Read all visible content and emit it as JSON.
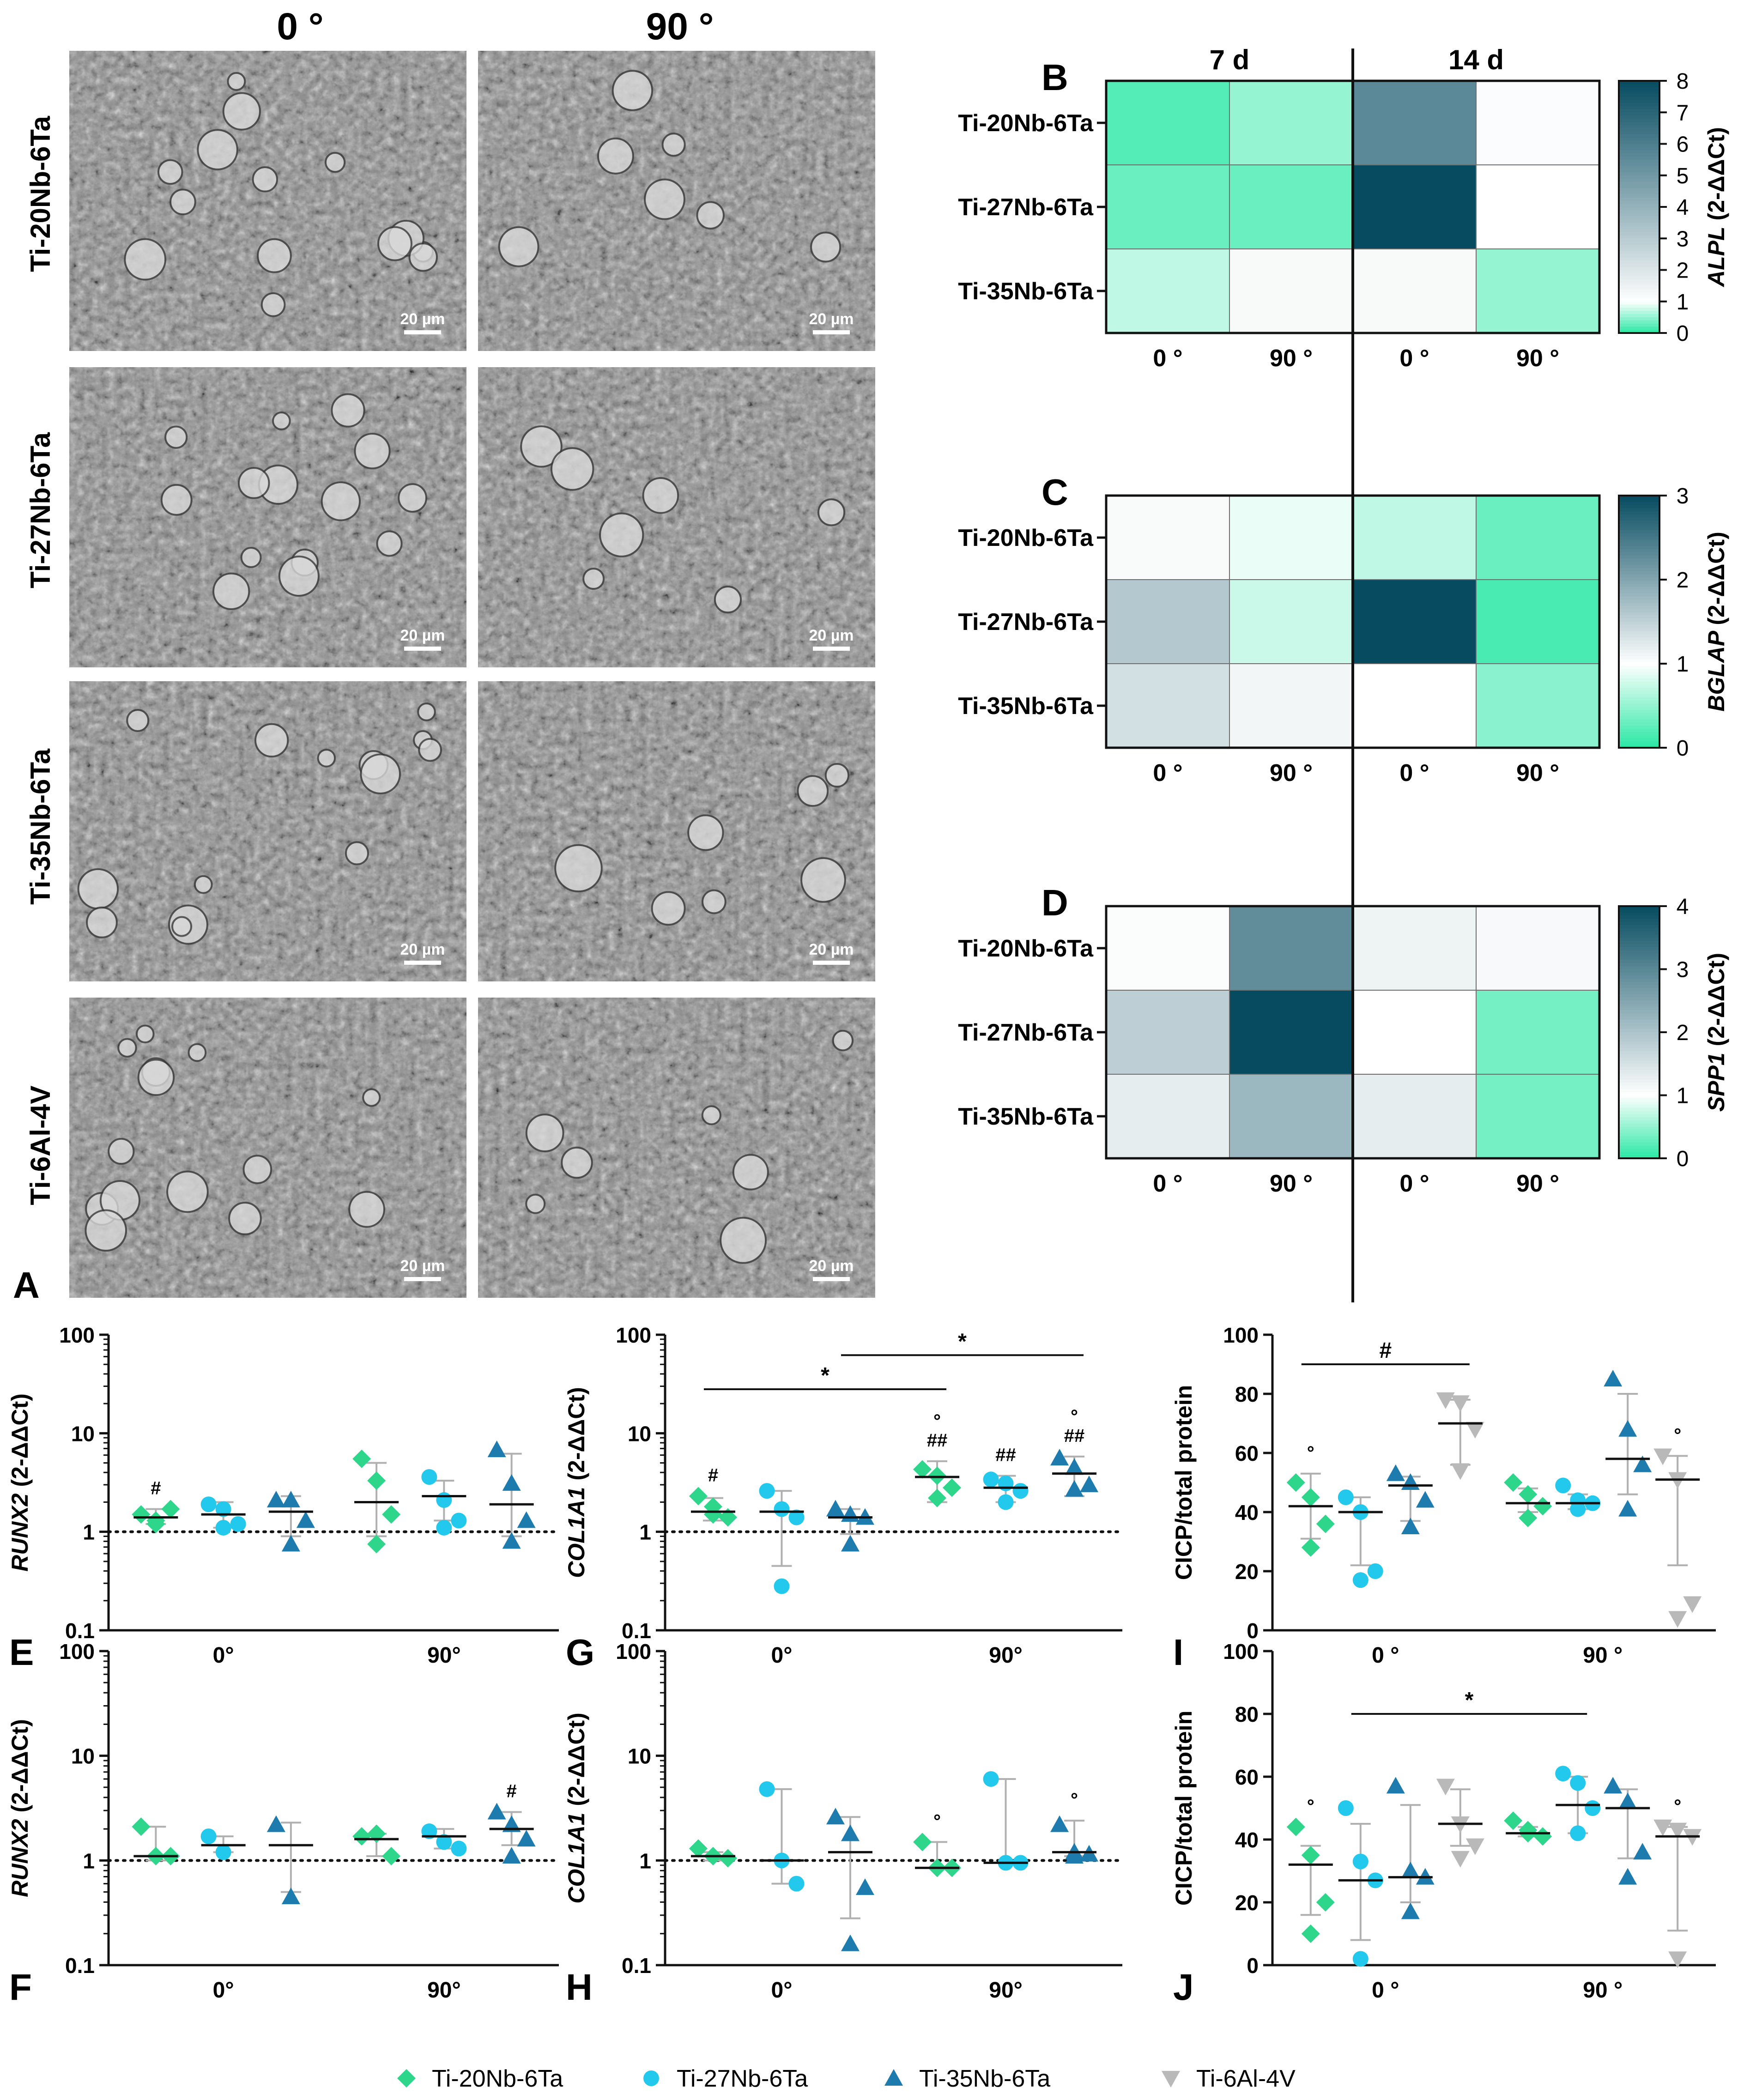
{
  "figure": {
    "col_labels": [
      "0 °",
      "90 °"
    ],
    "legend": {
      "items": [
        {
          "name": "Ti-20Nb-6Ta",
          "color": "#2ed68c",
          "marker": "diamond"
        },
        {
          "name": "Ti-27Nb-6Ta",
          "color": "#22c9ec",
          "marker": "circle"
        },
        {
          "name": "Ti-35Nb-6Ta",
          "color": "#1d7cad",
          "marker": "triangle-up"
        },
        {
          "name": "Ti-6Al-4V",
          "color": "#b9b9b9",
          "marker": "triangle-down"
        }
      ]
    }
  },
  "sem_panel": {
    "letter": "A",
    "alloys": [
      "Ti-20Nb-6Ta",
      "Ti-27Nb-6Ta",
      "Ti-35Nb-6Ta",
      "Ti-6Al-4V"
    ],
    "scale_bar": "20 µm"
  },
  "chart_data": [
    {
      "panel": "B",
      "type": "heatmap",
      "title": "",
      "gene": "ALPL",
      "unit": "(2-ΔΔCt)",
      "top_labels": [
        "7 d",
        "14 d"
      ],
      "rows": [
        "Ti-20Nb-6Ta",
        "Ti-27Nb-6Ta",
        "Ti-35Nb-6Ta"
      ],
      "columns": [
        "0 °",
        "90 °",
        "0 °",
        "90 °"
      ],
      "values": [
        [
          0.2,
          0.5,
          5.6,
          1.1
        ],
        [
          0.3,
          0.3,
          8.0,
          1.0
        ],
        [
          0.7,
          1.2,
          1.2,
          0.5
        ]
      ],
      "colorbar": {
        "min": 0,
        "max": 8,
        "ticks": [
          0,
          1,
          2,
          3,
          4,
          5,
          6,
          7,
          8
        ]
      }
    },
    {
      "panel": "C",
      "type": "heatmap",
      "title": "",
      "gene": "BGLAP",
      "unit": "(2-ΔΔCt)",
      "rows": [
        "Ti-20Nb-6Ta",
        "Ti-27Nb-6Ta",
        "Ti-35Nb-6Ta"
      ],
      "columns": [
        "0 °",
        "90 °",
        "0 °",
        "90 °"
      ],
      "values": [
        [
          1.05,
          0.9,
          0.7,
          0.3
        ],
        [
          1.6,
          0.75,
          3.0,
          0.15
        ],
        [
          1.35,
          1.1,
          1.0,
          0.45
        ]
      ],
      "colorbar": {
        "min": 0,
        "max": 3,
        "ticks": [
          0,
          1,
          2,
          3
        ]
      }
    },
    {
      "panel": "D",
      "type": "heatmap",
      "title": "",
      "gene": "SPP1",
      "unit": "(2-ΔΔCt)",
      "rows": [
        "Ti-20Nb-6Ta",
        "Ti-27Nb-6Ta",
        "Ti-35Nb-6Ta"
      ],
      "columns": [
        "0 °",
        "90 °",
        "0 °",
        "90 °"
      ],
      "values": [
        [
          1.05,
          2.9,
          1.2,
          1.1
        ],
        [
          1.8,
          4.0,
          1.0,
          0.35
        ],
        [
          1.3,
          2.2,
          1.3,
          0.35
        ]
      ],
      "colorbar": {
        "min": 0,
        "max": 4,
        "ticks": [
          0,
          1,
          2,
          3,
          4
        ]
      }
    },
    {
      "panel": "E",
      "type": "scatter",
      "title": "",
      "ylabel_gene": "RUNX2",
      "ylabel_unit": "(2-ΔΔCt)",
      "yscale": "log",
      "ylim": [
        0.1,
        100
      ],
      "yticks": [
        "0.1",
        "1",
        "10",
        "100"
      ],
      "groups": [
        "0°",
        "90°"
      ],
      "series": [
        {
          "name": "Ti-20Nb-6Ta",
          "group": "0°",
          "points": [
            1.5,
            1.2,
            1.7,
            1.3
          ],
          "mean": 1.4,
          "err": [
            1.2,
            1.7
          ],
          "annot_above": "#"
        },
        {
          "name": "Ti-27Nb-6Ta",
          "group": "0°",
          "points": [
            1.9,
            1.1,
            1.2,
            1.7
          ],
          "mean": 1.5,
          "err": [
            1.1,
            2.0
          ]
        },
        {
          "name": "Ti-35Nb-6Ta",
          "group": "0°",
          "points": [
            2.1,
            0.75,
            1.3,
            2.1
          ],
          "mean": 1.6,
          "err": [
            0.9,
            2.3
          ]
        },
        {
          "name": "Ti-20Nb-6Ta",
          "group": "90°",
          "points": [
            5.5,
            3.3,
            1.5,
            0.75
          ],
          "mean": 2.0,
          "err": [
            0.9,
            5.0
          ]
        },
        {
          "name": "Ti-27Nb-6Ta",
          "group": "90°",
          "points": [
            3.6,
            2.1,
            1.3,
            1.1
          ],
          "mean": 2.3,
          "err": [
            1.3,
            3.3
          ]
        },
        {
          "name": "Ti-35Nb-6Ta",
          "group": "90°",
          "points": [
            6.8,
            3.1,
            1.3,
            0.8
          ],
          "mean": 1.9,
          "err": [
            0.9,
            6.2
          ]
        }
      ],
      "refline": 1,
      "brackets": []
    },
    {
      "panel": "F",
      "type": "scatter",
      "title": "",
      "ylabel_gene": "RUNX2",
      "ylabel_unit": "(2-ΔΔCt)",
      "yscale": "log",
      "ylim": [
        0.1,
        100
      ],
      "yticks": [
        "0.1",
        "1",
        "10",
        "100"
      ],
      "groups": [
        "0°",
        "90°"
      ],
      "series": [
        {
          "name": "Ti-20Nb-6Ta",
          "group": "0°",
          "points": [
            2.1,
            1.1,
            1.1
          ],
          "mean": 1.1,
          "err": [
            1.0,
            2.1
          ]
        },
        {
          "name": "Ti-27Nb-6Ta",
          "group": "0°",
          "points": [
            1.7,
            1.2
          ],
          "mean": 1.4,
          "err": [
            1.2,
            1.7
          ]
        },
        {
          "name": "Ti-35Nb-6Ta",
          "group": "0°",
          "points": [
            2.2,
            0.45
          ],
          "mean": 1.4,
          "err": [
            0.5,
            2.3
          ]
        },
        {
          "name": "Ti-20Nb-6Ta",
          "group": "90°",
          "points": [
            1.7,
            1.8,
            1.1
          ],
          "mean": 1.6,
          "err": [
            1.1,
            1.8
          ]
        },
        {
          "name": "Ti-27Nb-6Ta",
          "group": "90°",
          "points": [
            1.9,
            1.5,
            1.3
          ],
          "mean": 1.7,
          "err": [
            1.3,
            2.0
          ]
        },
        {
          "name": "Ti-35Nb-6Ta",
          "group": "90°",
          "points": [
            2.9,
            2.2,
            1.6,
            1.1
          ],
          "mean": 2.0,
          "err": [
            1.4,
            2.9
          ],
          "annot_above": "#"
        }
      ],
      "refline": 1,
      "brackets": []
    },
    {
      "panel": "G",
      "type": "scatter",
      "title": "",
      "ylabel_gene": "COL1A1",
      "ylabel_unit": "(2-ΔΔCt)",
      "yscale": "log",
      "ylim": [
        0.1,
        100
      ],
      "yticks": [
        "0.1",
        "1",
        "10",
        "100"
      ],
      "groups": [
        "0°",
        "90°"
      ],
      "series": [
        {
          "name": "Ti-20Nb-6Ta",
          "group": "0°",
          "points": [
            2.3,
            1.8,
            1.4,
            1.5
          ],
          "mean": 1.6,
          "err": [
            1.3,
            2.2
          ],
          "annot_above": "#"
        },
        {
          "name": "Ti-27Nb-6Ta",
          "group": "0°",
          "points": [
            2.6,
            1.7,
            1.4,
            0.28
          ],
          "mean": 1.6,
          "err": [
            0.45,
            2.6
          ]
        },
        {
          "name": "Ti-35Nb-6Ta",
          "group": "0°",
          "points": [
            1.7,
            1.5,
            1.4,
            0.75
          ],
          "mean": 1.4,
          "err": [
            0.95,
            1.7
          ]
        },
        {
          "name": "Ti-20Nb-6Ta",
          "group": "90°",
          "points": [
            4.3,
            3.7,
            2.8,
            2.2
          ],
          "mean": 3.6,
          "err": [
            2.0,
            5.2
          ],
          "annot_above": "°\n##"
        },
        {
          "name": "Ti-27Nb-6Ta",
          "group": "90°",
          "points": [
            3.4,
            3.1,
            2.6,
            2.0
          ],
          "mean": 2.8,
          "err": [
            2.0,
            3.7
          ],
          "annot_above": "##"
        },
        {
          "name": "Ti-35Nb-6Ta",
          "group": "90°",
          "points": [
            5.6,
            4.5,
            3.0,
            2.7
          ],
          "mean": 3.9,
          "err": [
            2.3,
            5.8
          ],
          "annot_above": "°\n##"
        }
      ],
      "refline": 1,
      "brackets": [
        {
          "label": "*",
          "from": "Ti-20Nb-6Ta 0°",
          "to": "Ti-20Nb-6Ta 90°"
        },
        {
          "label": "*",
          "from": "Ti-35Nb-6Ta 0°",
          "to": "Ti-35Nb-6Ta 90°"
        }
      ]
    },
    {
      "panel": "H",
      "type": "scatter",
      "title": "",
      "ylabel_gene": "COL1A1",
      "ylabel_unit": "(2-ΔΔCt)",
      "yscale": "log",
      "ylim": [
        0.1,
        100
      ],
      "yticks": [
        "0.1",
        "1",
        "10",
        "100"
      ],
      "groups": [
        "0°",
        "90°"
      ],
      "series": [
        {
          "name": "Ti-20Nb-6Ta",
          "group": "0°",
          "points": [
            1.3,
            1.1,
            1.05,
            1.1
          ],
          "mean": 1.1,
          "err": [
            1.0,
            1.2
          ]
        },
        {
          "name": "Ti-27Nb-6Ta",
          "group": "0°",
          "points": [
            4.8,
            1.0,
            0.6
          ],
          "mean": 1.0,
          "err": [
            0.6,
            4.8
          ]
        },
        {
          "name": "Ti-35Nb-6Ta",
          "group": "0°",
          "points": [
            2.6,
            1.8,
            0.55,
            0.16
          ],
          "mean": 1.2,
          "err": [
            0.28,
            2.6
          ]
        },
        {
          "name": "Ti-20Nb-6Ta",
          "group": "90°",
          "points": [
            1.5,
            0.85,
            0.85,
            0.85
          ],
          "mean": 0.85,
          "err": [
            0.85,
            1.5
          ],
          "annot_above": "°"
        },
        {
          "name": "Ti-27Nb-6Ta",
          "group": "90°",
          "points": [
            6.0,
            0.95,
            0.95
          ],
          "mean": 0.95,
          "err": [
            0.95,
            6.0
          ]
        },
        {
          "name": "Ti-35Nb-6Ta",
          "group": "90°",
          "points": [
            2.2,
            1.2,
            1.15,
            1.1
          ],
          "mean": 1.2,
          "err": [
            1.1,
            2.4
          ],
          "annot_above": "°"
        }
      ],
      "refline": 1,
      "brackets": []
    },
    {
      "panel": "I",
      "type": "scatter",
      "title": "",
      "ylabel": "CICP/total protein",
      "yscale": "linear",
      "ylim": [
        0,
        100
      ],
      "yticks": [
        "0",
        "20",
        "40",
        "60",
        "80",
        "100"
      ],
      "groups": [
        "0 °",
        "90 °"
      ],
      "series": [
        {
          "name": "Ti-20Nb-6Ta",
          "group": "0 °",
          "points": [
            50,
            45,
            36,
            28
          ],
          "mean": 42,
          "err": [
            31,
            53
          ],
          "annot_above": "°"
        },
        {
          "name": "Ti-27Nb-6Ta",
          "group": "0 °",
          "points": [
            45,
            40,
            20,
            17
          ],
          "mean": 40,
          "err": [
            22,
            45
          ]
        },
        {
          "name": "Ti-35Nb-6Ta",
          "group": "0 °",
          "points": [
            53,
            50,
            44,
            35
          ],
          "mean": 49,
          "err": [
            37,
            52
          ]
        },
        {
          "name": "Ti-6Al-4V",
          "group": "0 °",
          "points": [
            78,
            77,
            68,
            54
          ],
          "mean": 70,
          "err": [
            56,
            78
          ]
        },
        {
          "name": "Ti-20Nb-6Ta",
          "group": "90 °",
          "points": [
            50,
            46,
            42,
            38
          ],
          "mean": 43,
          "err": [
            40,
            48
          ]
        },
        {
          "name": "Ti-27Nb-6Ta",
          "group": "90 °",
          "points": [
            49,
            44,
            43,
            41
          ],
          "mean": 43,
          "err": [
            41,
            46
          ]
        },
        {
          "name": "Ti-35Nb-6Ta",
          "group": "90 °",
          "points": [
            85,
            68,
            56,
            41
          ],
          "mean": 58,
          "err": [
            46,
            80
          ]
        },
        {
          "name": "Ti-6Al-4V",
          "group": "90 °",
          "points": [
            59,
            51,
            9,
            4
          ],
          "mean": 51,
          "err": [
            22,
            59
          ],
          "annot_above": "°"
        }
      ],
      "refline": null,
      "brackets": [
        {
          "label": "#",
          "from": "Ti-20Nb-6Ta 0 °",
          "to": "Ti-6Al-4V 0 °"
        }
      ]
    },
    {
      "panel": "J",
      "type": "scatter",
      "title": "",
      "ylabel": "CICP/total protein",
      "yscale": "linear",
      "ylim": [
        0,
        100
      ],
      "yticks": [
        "0",
        "20",
        "40",
        "60",
        "80",
        "100"
      ],
      "groups": [
        "0 °",
        "90 °"
      ],
      "series": [
        {
          "name": "Ti-20Nb-6Ta",
          "group": "0 °",
          "points": [
            44,
            35,
            20,
            10
          ],
          "mean": 32,
          "err": [
            16,
            38
          ],
          "annot_above": "°"
        },
        {
          "name": "Ti-27Nb-6Ta",
          "group": "0 °",
          "points": [
            50,
            33,
            27,
            2
          ],
          "mean": 27,
          "err": [
            8,
            45
          ]
        },
        {
          "name": "Ti-35Nb-6Ta",
          "group": "0 °",
          "points": [
            57,
            30,
            28,
            17
          ],
          "mean": 28,
          "err": [
            20,
            51
          ]
        },
        {
          "name": "Ti-6Al-4V",
          "group": "0 °",
          "points": [
            57,
            45,
            38,
            34
          ],
          "mean": 45,
          "err": [
            38,
            56
          ]
        },
        {
          "name": "Ti-20Nb-6Ta",
          "group": "90 °",
          "points": [
            46,
            42,
            41,
            43
          ],
          "mean": 42,
          "err": [
            41,
            44
          ]
        },
        {
          "name": "Ti-27Nb-6Ta",
          "group": "90 °",
          "points": [
            61,
            58,
            50,
            42
          ],
          "mean": 51,
          "err": [
            42,
            60
          ]
        },
        {
          "name": "Ti-35Nb-6Ta",
          "group": "90 °",
          "points": [
            57,
            52,
            36,
            28
          ],
          "mean": 50,
          "err": [
            34,
            56
          ]
        },
        {
          "name": "Ti-6Al-4V",
          "group": "90 °",
          "points": [
            44,
            43,
            41,
            2
          ],
          "mean": 41,
          "err": [
            11,
            44
          ],
          "annot_above": "°"
        }
      ],
      "refline": null,
      "brackets": [
        {
          "label": "*",
          "from": "Ti-27Nb-6Ta 0 °",
          "to": "Ti-27Nb-6Ta 90 °"
        }
      ]
    }
  ]
}
